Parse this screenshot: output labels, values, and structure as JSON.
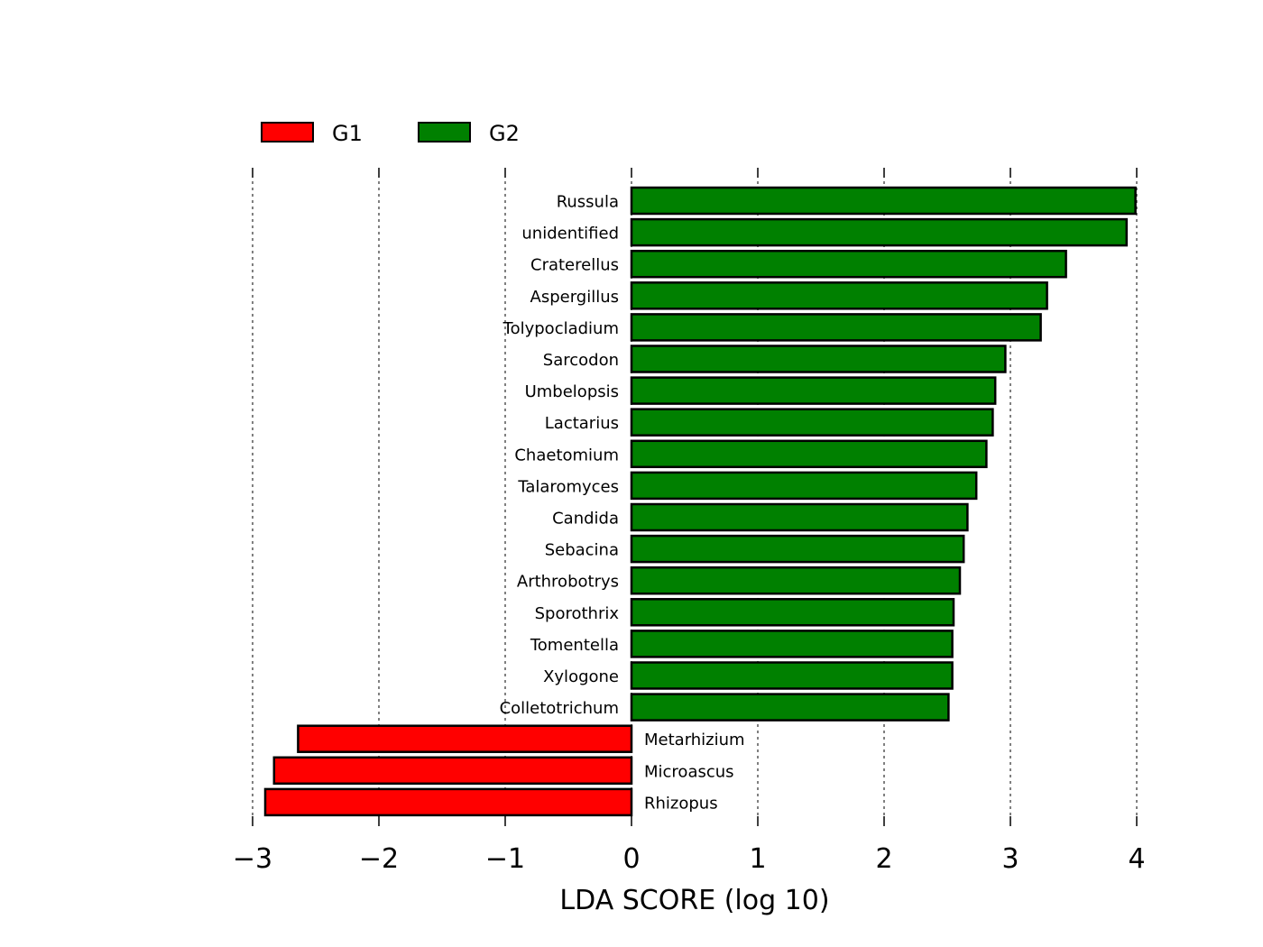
{
  "chart_data": {
    "type": "bar",
    "orientation": "horizontal",
    "xlabel": "LDA SCORE (log 10)",
    "ylabel": "",
    "title": "",
    "xlim": [
      -3,
      4
    ],
    "xticks": [
      -3,
      -2,
      -1,
      0,
      1,
      2,
      3,
      4
    ],
    "xtick_labels": [
      "−3",
      "−2",
      "−1",
      "0",
      "1",
      "2",
      "3",
      "4"
    ],
    "grid": "vertical dashed",
    "legend_position": "top-left",
    "legend": [
      {
        "name": "G1",
        "color": "#ff0000"
      },
      {
        "name": "G2",
        "color": "#008000"
      }
    ],
    "bars": [
      {
        "label": "Russula",
        "value": 3.99,
        "group": "G2"
      },
      {
        "label": "unidentified",
        "value": 3.92,
        "group": "G2"
      },
      {
        "label": "Craterellus",
        "value": 3.44,
        "group": "G2"
      },
      {
        "label": "Aspergillus",
        "value": 3.29,
        "group": "G2"
      },
      {
        "label": "Tolypocladium",
        "value": 3.24,
        "group": "G2"
      },
      {
        "label": "Sarcodon",
        "value": 2.96,
        "group": "G2"
      },
      {
        "label": "Umbelopsis",
        "value": 2.88,
        "group": "G2"
      },
      {
        "label": "Lactarius",
        "value": 2.86,
        "group": "G2"
      },
      {
        "label": "Chaetomium",
        "value": 2.81,
        "group": "G2"
      },
      {
        "label": "Talaromyces",
        "value": 2.73,
        "group": "G2"
      },
      {
        "label": "Candida",
        "value": 2.66,
        "group": "G2"
      },
      {
        "label": "Sebacina",
        "value": 2.63,
        "group": "G2"
      },
      {
        "label": "Arthrobotrys",
        "value": 2.6,
        "group": "G2"
      },
      {
        "label": "Sporothrix",
        "value": 2.55,
        "group": "G2"
      },
      {
        "label": "Tomentella",
        "value": 2.54,
        "group": "G2"
      },
      {
        "label": "Xylogone",
        "value": 2.54,
        "group": "G2"
      },
      {
        "label": "Colletotrichum",
        "value": 2.51,
        "group": "G2"
      },
      {
        "label": "Metarhizium",
        "value": -2.64,
        "group": "G1"
      },
      {
        "label": "Microascus",
        "value": -2.83,
        "group": "G1"
      },
      {
        "label": "Rhizopus",
        "value": -2.9,
        "group": "G1"
      }
    ]
  }
}
